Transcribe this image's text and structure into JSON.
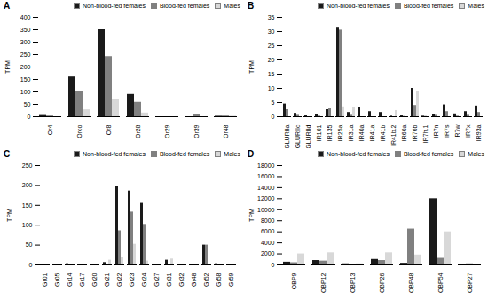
{
  "chart_data": [
    {
      "type": "bar",
      "title": "A",
      "ylabel": "TPM",
      "categories": [
        "Or4",
        "Orco",
        "Or8",
        "Or28",
        "Or29",
        "Or39",
        "Or48"
      ],
      "series": [
        {
          "name": "Non-blood-fed females",
          "color": "#1a1a1a",
          "values": [
            5,
            160,
            350,
            90,
            0,
            0,
            2
          ]
        },
        {
          "name": "Blood-fed females",
          "color": "#808080",
          "values": [
            3,
            102,
            242,
            58,
            0,
            8,
            3
          ]
        },
        {
          "name": "Males",
          "color": "#d8d8d8",
          "values": [
            0,
            28,
            68,
            15,
            0,
            0,
            2
          ]
        }
      ],
      "ylim": [
        0,
        400
      ],
      "yticks": [
        0,
        50,
        100,
        150,
        200,
        250,
        300,
        350,
        400
      ],
      "legend": "upper right"
    },
    {
      "type": "bar",
      "title": "B",
      "ylabel": "TPM",
      "categories": [
        "GLURIIa",
        "GLURIIc",
        "GLURIId",
        "IR101",
        "IR135",
        "IR25a",
        "IR31a",
        "IR40a",
        "IR41a",
        "IR41b",
        "IR41b.2",
        "IR60a",
        "IR76b",
        "IR7h.1",
        "IR7n",
        "IR7s",
        "IR7w",
        "IR7x",
        "IR93a"
      ],
      "series": [
        {
          "name": "Non-blood-fed females",
          "color": "#1a1a1a",
          "values": [
            4.5,
            1.2,
            0.3,
            0.8,
            2.5,
            31.5,
            1.5,
            3.2,
            1.8,
            1.5,
            0.2,
            0.3,
            10.0,
            0.2,
            0.8,
            4.2,
            1.0,
            1.8,
            3.8
          ]
        },
        {
          "name": "Blood-fed females",
          "color": "#808080",
          "values": [
            2.5,
            0.5,
            0.0,
            0.2,
            2.8,
            30.5,
            0.5,
            0.0,
            0.0,
            0.0,
            0.0,
            0.1,
            4.0,
            0.1,
            0.5,
            1.8,
            0.2,
            0.5,
            1.5
          ]
        },
        {
          "name": "Males",
          "color": "#d8d8d8",
          "values": [
            0.0,
            0.0,
            0.0,
            0.0,
            0.0,
            3.5,
            3.2,
            0.0,
            0.0,
            0.0,
            2.2,
            0.0,
            8.8,
            0.0,
            0.0,
            0.0,
            0.0,
            0.0,
            0.0
          ]
        }
      ],
      "ylim": [
        0,
        35
      ],
      "yticks": [
        0,
        5,
        10,
        15,
        20,
        25,
        30,
        35
      ],
      "legend": "upper right"
    },
    {
      "type": "bar",
      "title": "C",
      "ylabel": "TPM",
      "categories": [
        "Gr01",
        "Gr05",
        "Gr14",
        "Gr17",
        "Gr20",
        "Gr21",
        "Gr22",
        "Gr23",
        "Gr24",
        "Gr27",
        "Gr31",
        "Gr32",
        "Gr48",
        "Gr52",
        "Gr58",
        "Gr59"
      ],
      "series": [
        {
          "name": "Non-blood-fed females",
          "color": "#1a1a1a",
          "values": [
            2,
            2,
            3,
            0,
            2,
            6,
            197,
            186,
            155,
            0,
            12,
            0,
            2,
            50,
            3,
            0
          ]
        },
        {
          "name": "Blood-fed females",
          "color": "#808080",
          "values": [
            0,
            0,
            0,
            0,
            0,
            0,
            86,
            133,
            102,
            0,
            0,
            0,
            0,
            50,
            0,
            0
          ]
        },
        {
          "name": "Males",
          "color": "#d8d8d8",
          "values": [
            0,
            0,
            0,
            0,
            0,
            12,
            18,
            52,
            10,
            0,
            15,
            0,
            0,
            0,
            0,
            0
          ]
        }
      ],
      "ylim": [
        0,
        250
      ],
      "yticks": [
        0,
        50,
        100,
        150,
        200,
        250
      ],
      "legend": "upper right"
    },
    {
      "type": "bar",
      "title": "D",
      "ylabel": "TPM",
      "categories": [
        "OBP9",
        "OBP12",
        "OBP13",
        "OBP26",
        "OBP48",
        "OBP54",
        "OBP27"
      ],
      "series": [
        {
          "name": "Non-blood-fed females",
          "color": "#1a1a1a",
          "values": [
            500,
            800,
            200,
            1000,
            300,
            12000,
            100
          ]
        },
        {
          "name": "Blood-fed females",
          "color": "#808080",
          "values": [
            400,
            700,
            100,
            800,
            6500,
            1200,
            200
          ]
        },
        {
          "name": "Males",
          "color": "#d8d8d8",
          "values": [
            2000,
            2200,
            200,
            2200,
            1800,
            6000,
            100
          ]
        }
      ],
      "ylim": [
        0,
        18000
      ],
      "yticks": [
        0,
        2000,
        4000,
        6000,
        8000,
        10000,
        12000,
        14000,
        16000,
        18000
      ],
      "legend": "upper right"
    }
  ]
}
